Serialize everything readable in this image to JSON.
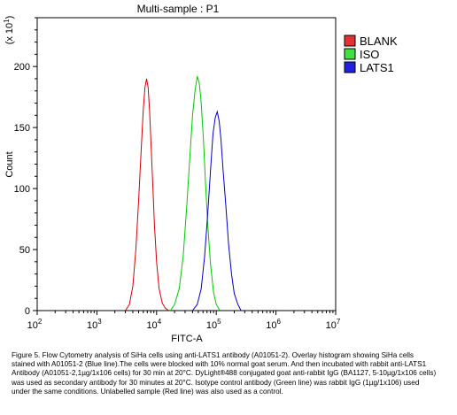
{
  "chart_data": {
    "type": "line",
    "title": "Multi-sample : P1",
    "xlabel": "FITC-A",
    "ylabel": "Count",
    "y_multiplier_label": "(x 10",
    "y_multiplier_exp": "1",
    "x_scale": "log",
    "xlim": [
      100,
      10000000
    ],
    "ylim": [
      0,
      240
    ],
    "x_ticks": [
      {
        "value": 100,
        "base": "10",
        "exp": "2"
      },
      {
        "value": 1000,
        "base": "10",
        "exp": "3"
      },
      {
        "value": 10000,
        "base": "10",
        "exp": "4"
      },
      {
        "value": 100000,
        "base": "10",
        "exp": "5"
      },
      {
        "value": 1000000,
        "base": "10",
        "exp": "6"
      },
      {
        "value": 10000000,
        "base": "10",
        "exp": "7"
      }
    ],
    "y_ticks": [
      {
        "value": 0,
        "label": "0"
      },
      {
        "value": 50,
        "label": "50"
      },
      {
        "value": 100,
        "label": "100"
      },
      {
        "value": 150,
        "label": "150"
      },
      {
        "value": 200,
        "label": "200"
      }
    ],
    "grid": false,
    "legend_position": "top-right",
    "series": [
      {
        "name": "BLANK",
        "color": "#d40000",
        "fill": "#e43030",
        "x": [
          3000,
          3500,
          4000,
          4500,
          5000,
          5500,
          6000,
          6400,
          6800,
          7200,
          7600,
          8000,
          8600,
          9200,
          10000,
          11000,
          12500,
          14000,
          16000
        ],
        "y": [
          0,
          5,
          20,
          50,
          90,
          130,
          165,
          183,
          190,
          183,
          165,
          140,
          105,
          70,
          40,
          18,
          6,
          2,
          0
        ]
      },
      {
        "name": "ISO",
        "color": "#00c800",
        "fill": "#40e040",
        "x": [
          17000,
          20000,
          24000,
          28000,
          32000,
          36000,
          40000,
          44000,
          48000,
          52000,
          56000,
          61000,
          66000,
          72000,
          80000,
          90000,
          100000,
          115000
        ],
        "y": [
          0,
          5,
          18,
          45,
          85,
          125,
          160,
          180,
          192,
          186,
          170,
          140,
          105,
          70,
          38,
          15,
          5,
          0
        ]
      },
      {
        "name": "LATS1",
        "color": "#0000cc",
        "fill": "#2020e0",
        "x": [
          40000,
          48000,
          56000,
          64000,
          72000,
          80000,
          88000,
          96000,
          104000,
          112000,
          120000,
          130000,
          145000,
          160000,
          180000,
          200000,
          230000,
          260000
        ],
        "y": [
          0,
          5,
          18,
          45,
          80,
          115,
          145,
          158,
          163,
          155,
          140,
          115,
          85,
          55,
          30,
          14,
          5,
          0
        ]
      }
    ]
  },
  "caption": "Figure 5. Flow Cytometry analysis of SiHa cells using anti-LATS1 antibody (A01051-2).  Overlay histogram showing SiHa cells stained with A01051-2 (Blue line).The cells were blocked with 10% normal goat serum. And then incubated with rabbit anti-LATS1 Antibody (A01051-2,1µg/1x106 cells) for 30 min at 20°C. DyLight®488 conjugated goat anti-rabbit IgG (BA1127, 5-10µg/1x106 cells) was used as secondary antibody for 30 minutes at 20°C. Isotype control antibody (Green line) was rabbit IgG (1µg/1x106) used under the same conditions. Unlabelled sample (Red line) was also used as a control."
}
